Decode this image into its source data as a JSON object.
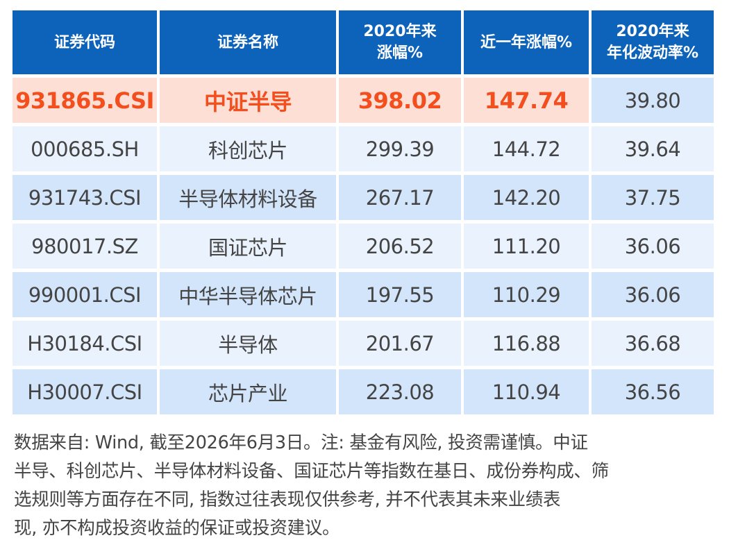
{
  "table": {
    "headers": [
      "证券代码",
      "证券名称",
      "2020年来涨幅%",
      "近一年涨幅%",
      "2020年来年化波动率%"
    ],
    "header_lines": [
      [
        "证券代码"
      ],
      [
        "证券名称"
      ],
      [
        "2020年来",
        "涨幅%"
      ],
      [
        "近一年涨幅%"
      ],
      [
        "2020年来",
        "年化波动率%"
      ]
    ],
    "rows": [
      [
        "931865.CSI",
        "中证半导",
        "398.02",
        "147.74",
        "39.80"
      ],
      [
        "000685.SH",
        "科创芯片",
        "299.39",
        "144.72",
        "39.64"
      ],
      [
        "931743.CSI",
        "半导体材料设备",
        "267.17",
        "142.20",
        "37.75"
      ],
      [
        "980017.SZ",
        "国证芯片",
        "206.52",
        "111.20",
        "36.06"
      ],
      [
        "990001.CSI",
        "中华半导体芯片",
        "197.55",
        "110.29",
        "36.06"
      ],
      [
        "H30184.CSI",
        "半导体",
        "201.67",
        "116.88",
        "36.68"
      ],
      [
        "H30007.CSI",
        "芯片产业",
        "223.08",
        "110.94",
        "36.56"
      ]
    ],
    "highlight_row": 0
  },
  "footnote": {
    "lines": [
      "数据来自: Wind, 截至2026年6月3日。注: 基金有风险, 投资需谨慎。中证",
      "半导、科创芯片、半导体材料设备、国证芯片等指数在基日、成份券构成、筛",
      "选规则等方面存在不同, 指数过往表现仅供参考, 并不代表其未来业绩表",
      "现, 亦不构成投资收益的保证或投资建议。"
    ]
  },
  "colors": {
    "header_bg": "#0d63b9",
    "header_text": "#ffffff",
    "row_light": "#eaf3fd",
    "row_dark": "#d3e5fa",
    "highlight_bg": "#fddfd6",
    "highlight_text": "#f24e1e",
    "body_text": "#444444"
  }
}
